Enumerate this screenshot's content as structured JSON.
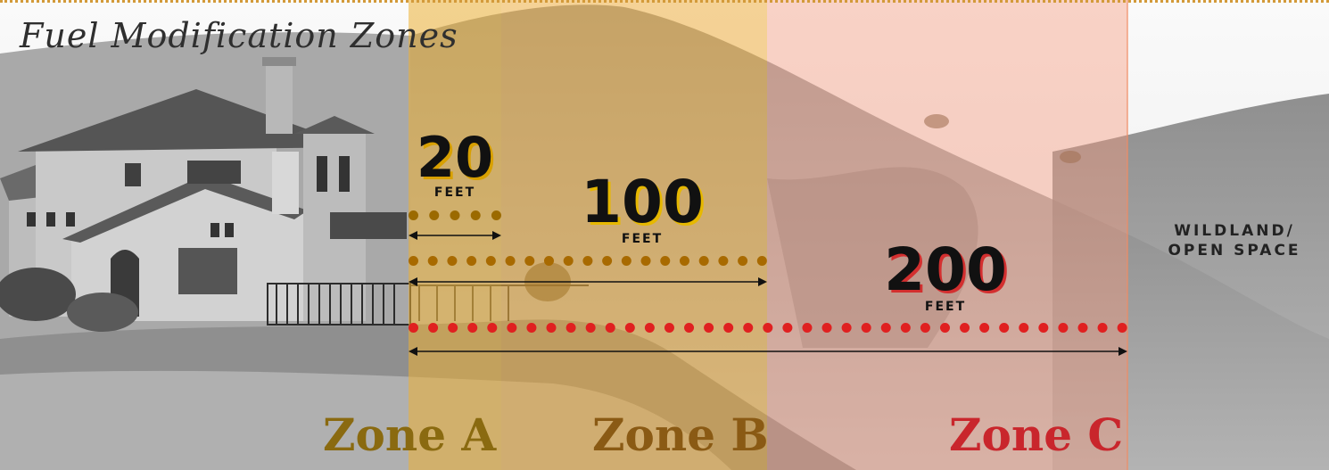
{
  "title": "Fuel Modification Zones",
  "distances": {
    "a": {
      "value": "20",
      "unit": "FEET"
    },
    "b": {
      "value": "100",
      "unit": "FEET"
    },
    "c": {
      "value": "200",
      "unit": "FEET"
    }
  },
  "zones": {
    "a": "Zone A",
    "b": "Zone B",
    "c": "Zone C"
  },
  "wildland": {
    "line1": "WILDLAND/",
    "line2": "OPEN SPACE"
  },
  "colors": {
    "zone_a": "#8a6a10",
    "zone_b": "#8a5a14",
    "zone_c": "#c9262c",
    "dotted_border": "#d39a3a"
  }
}
